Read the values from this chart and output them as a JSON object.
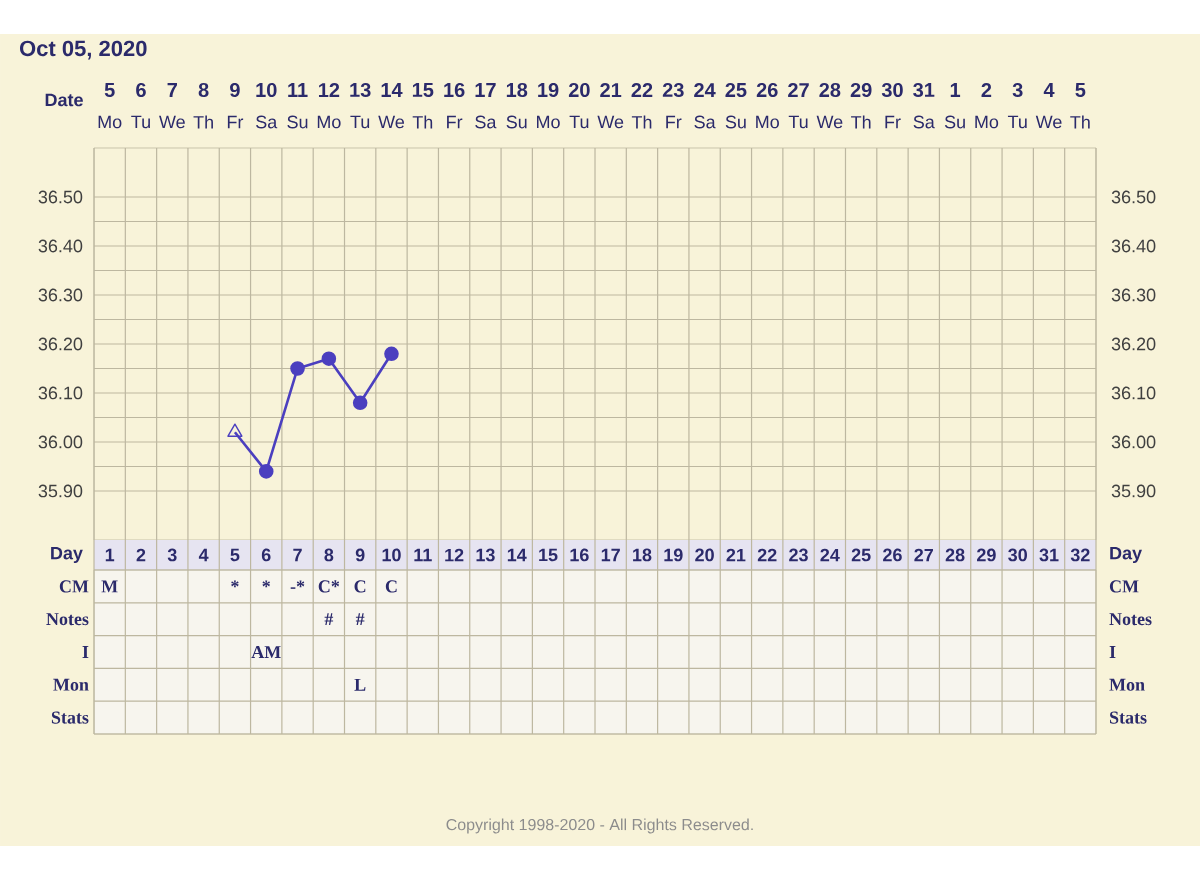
{
  "chart_data": [
    {
      "type": "line",
      "title": "Oct 05, 2020",
      "xlabel": "Date",
      "categories": [
        "5",
        "6",
        "7",
        "8",
        "9",
        "10",
        "11",
        "12",
        "13",
        "14",
        "15",
        "16",
        "17",
        "18",
        "19",
        "20",
        "21",
        "22",
        "23",
        "24",
        "25",
        "26",
        "27",
        "28",
        "29",
        "30",
        "31",
        "1",
        "2",
        "3",
        "4",
        "5"
      ],
      "annotations": [
        "Mo",
        "Tu",
        "We",
        "Th",
        "Fr",
        "Sa",
        "Su",
        "Mo",
        "Tu",
        "We",
        "Th",
        "Fr",
        "Sa",
        "Su",
        "Mo",
        "Tu",
        "We",
        "Th",
        "Fr",
        "Sa",
        "Su",
        "Mo",
        "Tu",
        "We",
        "Th",
        "Fr",
        "Sa",
        "Su",
        "Mo",
        "Tu",
        "We",
        "Th"
      ],
      "series": [
        {
          "type": "line",
          "marker": "none",
          "color": "#4b3fbf",
          "values": [
            null,
            null,
            null,
            null,
            36.02,
            35.94,
            36.15,
            36.17,
            36.08,
            36.18,
            null,
            null,
            null,
            null,
            null,
            null,
            null,
            null,
            null,
            null,
            null,
            null,
            null,
            null,
            null,
            null,
            null,
            null,
            null,
            null,
            null,
            null
          ]
        },
        {
          "type": "scatter",
          "marker": "triangle",
          "color": "#4b3fbf",
          "values": [
            null,
            null,
            null,
            null,
            36.02,
            null,
            null,
            null,
            null,
            null,
            null,
            null,
            null,
            null,
            null,
            null,
            null,
            null,
            null,
            null,
            null,
            null,
            null,
            null,
            null,
            null,
            null,
            null,
            null,
            null,
            null,
            null
          ]
        },
        {
          "type": "scatter",
          "marker": "circle",
          "color": "#4b3fbf",
          "values": [
            null,
            null,
            null,
            null,
            null,
            35.94,
            36.15,
            36.17,
            36.08,
            36.18,
            null,
            null,
            null,
            null,
            null,
            null,
            null,
            null,
            null,
            null,
            null,
            null,
            null,
            null,
            null,
            null,
            null,
            null,
            null,
            null,
            null,
            null
          ]
        }
      ],
      "ylim": [
        35.8,
        36.6
      ],
      "yticks": [
        {
          "value": 35.9,
          "label": "35.90"
        },
        {
          "value": 36.0,
          "label": "36.00"
        },
        {
          "value": 36.1,
          "label": "36.10"
        },
        {
          "value": 36.2,
          "label": "36.20"
        },
        {
          "value": 36.3,
          "label": "36.30"
        },
        {
          "value": 36.4,
          "label": "36.40"
        },
        {
          "value": 36.5,
          "label": "36.50"
        }
      ],
      "y2lim": [
        35.8,
        36.6
      ],
      "y2ticks": [
        {
          "value": 35.9,
          "label": "35.90"
        },
        {
          "value": 36.0,
          "label": "36.00"
        },
        {
          "value": 36.1,
          "label": "36.10"
        },
        {
          "value": 36.2,
          "label": "36.20"
        },
        {
          "value": 36.3,
          "label": "36.30"
        },
        {
          "value": 36.4,
          "label": "36.40"
        },
        {
          "value": 36.5,
          "label": "36.50"
        }
      ],
      "grid": true
    },
    {
      "type": "heatmap",
      "xlabel": "Day",
      "categories": [
        "1",
        "2",
        "3",
        "4",
        "5",
        "6",
        "7",
        "8",
        "9",
        "10",
        "11",
        "12",
        "13",
        "14",
        "15",
        "16",
        "17",
        "18",
        "19",
        "20",
        "21",
        "22",
        "23",
        "24",
        "25",
        "26",
        "27",
        "28",
        "29",
        "30",
        "31",
        "32"
      ],
      "y_categories": [
        "CM",
        "Notes",
        "I",
        "Mon",
        "Stats"
      ],
      "y2_categories": [
        "CM",
        "Notes",
        "I",
        "Mon",
        "Stats"
      ],
      "cells": [
        [
          null,
          null,
          null,
          null,
          null,
          null,
          null,
          null,
          null,
          null,
          null,
          null,
          null,
          null,
          null,
          null,
          null,
          null,
          null,
          null,
          null,
          null,
          null,
          null,
          null,
          null,
          null,
          null,
          null,
          null,
          null,
          null
        ],
        [
          null,
          null,
          null,
          null,
          null,
          null,
          null,
          null,
          null,
          null,
          null,
          null,
          null,
          null,
          null,
          null,
          null,
          null,
          null,
          null,
          null,
          null,
          null,
          null,
          null,
          null,
          null,
          null,
          null,
          null,
          null,
          null
        ],
        [
          null,
          null,
          null,
          null,
          null,
          null,
          null,
          null,
          null,
          null,
          null,
          null,
          null,
          null,
          null,
          null,
          null,
          null,
          null,
          null,
          null,
          null,
          null,
          null,
          null,
          null,
          null,
          null,
          null,
          null,
          null,
          null
        ],
        [
          null,
          null,
          null,
          null,
          null,
          null,
          null,
          null,
          null,
          null,
          null,
          null,
          null,
          null,
          null,
          null,
          null,
          null,
          null,
          null,
          null,
          null,
          null,
          null,
          null,
          null,
          null,
          null,
          null,
          null,
          null,
          null
        ],
        [
          null,
          null,
          null,
          null,
          null,
          null,
          null,
          null,
          null,
          null,
          null,
          null,
          null,
          null,
          null,
          null,
          null,
          null,
          null,
          null,
          null,
          null,
          null,
          null,
          null,
          null,
          null,
          null,
          null,
          null,
          null,
          null
        ]
      ],
      "cell_labels": [
        [
          "M",
          null,
          null,
          null,
          "*",
          "*",
          "-*",
          "C*",
          "C",
          "C",
          null,
          null,
          null,
          null,
          null,
          null,
          null,
          null,
          null,
          null,
          null,
          null,
          null,
          null,
          null,
          null,
          null,
          null,
          null,
          null,
          null,
          null
        ],
        [
          null,
          null,
          null,
          null,
          null,
          null,
          null,
          "#",
          "#",
          null,
          null,
          null,
          null,
          null,
          null,
          null,
          null,
          null,
          null,
          null,
          null,
          null,
          null,
          null,
          null,
          null,
          null,
          null,
          null,
          null,
          null,
          null
        ],
        [
          null,
          null,
          null,
          null,
          null,
          "AM",
          null,
          null,
          null,
          null,
          null,
          null,
          null,
          null,
          null,
          null,
          null,
          null,
          null,
          null,
          null,
          null,
          null,
          null,
          null,
          null,
          null,
          null,
          null,
          null,
          null,
          null
        ],
        [
          null,
          null,
          null,
          null,
          null,
          null,
          null,
          null,
          "L",
          null,
          null,
          null,
          null,
          null,
          null,
          null,
          null,
          null,
          null,
          null,
          null,
          null,
          null,
          null,
          null,
          null,
          null,
          null,
          null,
          null,
          null,
          null
        ],
        [
          null,
          null,
          null,
          null,
          null,
          null,
          null,
          null,
          null,
          null,
          null,
          null,
          null,
          null,
          null,
          null,
          null,
          null,
          null,
          null,
          null,
          null,
          null,
          null,
          null,
          null,
          null,
          null,
          null,
          null,
          null,
          null
        ]
      ],
      "annotations": [
        "Copyright 1998-2020 - All Rights Reserved."
      ],
      "grid": true
    }
  ]
}
